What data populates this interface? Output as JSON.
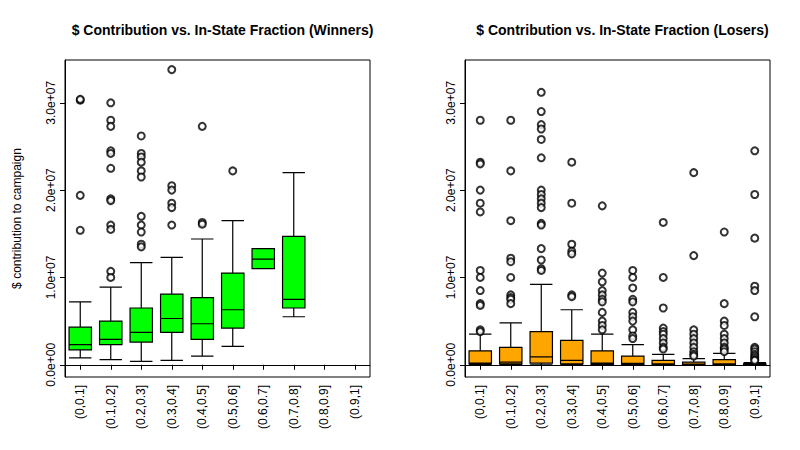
{
  "chart_data": [
    {
      "type": "boxplot",
      "title": "$ Contribution vs. In-State Fraction (Winners)",
      "ylabel": "$ contribution to campaign",
      "color": "#00ff00",
      "categories": [
        "(0,0.1]",
        "(0.1,0.2]",
        "(0.2,0.3]",
        "(0.3,0.4]",
        "(0.4,0.5]",
        "(0.5,0.6]",
        "(0.6,0.7]",
        "(0.7,0.8]",
        "(0.8,0.9]",
        "(0.9,1]"
      ],
      "boxes": [
        [
          800000.0,
          1700000.0,
          2300000.0,
          4300000.0,
          7200000.0
        ],
        [
          600000.0,
          2300000.0,
          2900000.0,
          5000000.0,
          8900000.0
        ],
        [
          400000.0,
          2600000.0,
          3700000.0,
          6500000.0,
          11700000.0
        ],
        [
          500000.0,
          3700000.0,
          5300000.0,
          8100000.0,
          12300000.0
        ],
        [
          1000000.0,
          2900000.0,
          4700000.0,
          7700000.0,
          14400000.0
        ],
        [
          2100000.0,
          4200000.0,
          6300000.0,
          10500000.0,
          16500000.0
        ],
        [
          11000000.0,
          11000000.0,
          12100000.0,
          13300000.0,
          13300000.0
        ],
        [
          5500000.0,
          6500000.0,
          7500000.0,
          14700000.0,
          22000000.0
        ],
        null,
        null
      ],
      "outliers": [
        [
          30300000.0,
          30400000.0,
          19400000.0,
          15400000.0
        ],
        [
          30000000.0,
          28000000.0,
          27300000.0,
          24500000.0,
          24200000.0,
          22500000.0,
          19000000.0,
          18800000.0,
          16000000.0,
          15500000.0,
          10700000.0,
          10000000.0
        ],
        [
          26200000.0,
          24200000.0,
          23800000.0,
          23200000.0,
          22200000.0,
          21500000.0,
          17000000.0,
          16000000.0,
          15200000.0,
          13800000.0,
          13500000.0
        ],
        [
          33800000.0,
          20500000.0,
          20000000.0,
          18500000.0,
          18000000.0,
          16000000.0
        ],
        [
          27300000.0,
          16300000.0,
          16100000.0
        ],
        [
          22200000.0
        ],
        [],
        [],
        [],
        []
      ],
      "ylim": [
        -1400000.0,
        34900000.0
      ],
      "yticks": [
        {
          "value": 0,
          "label": "0.0e+00"
        },
        {
          "value": 10000000,
          "label": "1.0e+07"
        },
        {
          "value": 20000000,
          "label": "2.0e+07"
        },
        {
          "value": 30000000,
          "label": "3.0e+07"
        }
      ]
    },
    {
      "type": "boxplot",
      "title": "$ Contribution vs. In-State Fraction (Losers)",
      "color": "#ffa500",
      "categories": [
        "(0,0.1]",
        "(0.1,0.2]",
        "(0.2,0.3]",
        "(0.3,0.4]",
        "(0.4,0.5]",
        "(0.5,0.6]",
        "(0.6,0.7]",
        "(0.7,0.8]",
        "(0.8,0.9]",
        "(0.9,1]"
      ],
      "boxes": [
        [
          0,
          100000.0,
          200000.0,
          1600000.0,
          3500000.0
        ],
        [
          0,
          100000.0,
          300000.0,
          2000000.0,
          4800000.0
        ],
        [
          0,
          200000.0,
          900000.0,
          3800000.0,
          9200000.0
        ],
        [
          0,
          100000.0,
          500000.0,
          2800000.0,
          6300000.0
        ],
        [
          0,
          50000.0,
          200000.0,
          1600000.0,
          3500000.0
        ],
        [
          0,
          30000.0,
          150000.0,
          1000000.0,
          2300000.0
        ],
        [
          0,
          30000.0,
          100000.0,
          500000.0,
          1200000.0
        ],
        [
          0,
          20000.0,
          80000.0,
          300000.0,
          700000.0
        ],
        [
          0,
          30000.0,
          100000.0,
          600000.0,
          1300000.0
        ],
        [
          0,
          10000.0,
          30000.0,
          100000.0,
          250000.0
        ]
      ],
      "outliers": [
        [
          28000000.0,
          23200000.0,
          23000000.0,
          20000000.0,
          18500000.0,
          17500000.0,
          10800000.0,
          10000000.0,
          8500000.0,
          7000000.0,
          6800000.0,
          4000000.0,
          3800000.0
        ],
        [
          28000000.0,
          22200000.0,
          16500000.0,
          12200000.0,
          11800000.0,
          10000000.0,
          8000000.0,
          7700000.0,
          7500000.0,
          7000000.0
        ],
        [
          31200000.0,
          29000000.0,
          27500000.0,
          27000000.0,
          25800000.0,
          23700000.0,
          20000000.0,
          19500000.0,
          19000000.0,
          18500000.0,
          18000000.0,
          16200000.0,
          16000000.0,
          13300000.0,
          12000000.0,
          11000000.0,
          10800000.0
        ],
        [
          23200000.0,
          18500000.0,
          13800000.0,
          13000000.0,
          12700000.0,
          8000000.0,
          7800000.0
        ],
        [
          18200000.0,
          10500000.0,
          9500000.0,
          8500000.0,
          8000000.0,
          7500000.0,
          7200000.0,
          6000000.0,
          5000000.0,
          4500000.0,
          4000000.0
        ],
        [
          10800000.0,
          10000000.0,
          8800000.0,
          7500000.0,
          7200000.0,
          6000000.0,
          5500000.0,
          5000000.0,
          4000000.0,
          3300000.0,
          3000000.0
        ],
        [
          16300000.0,
          10000000.0,
          6500000.0,
          4200000.0,
          3800000.0,
          3500000.0,
          3000000.0,
          2500000.0,
          2000000.0,
          1800000.0
        ],
        [
          22000000.0,
          12500000.0,
          4000000.0,
          3500000.0,
          3000000.0,
          2500000.0,
          2000000.0,
          1500000.0,
          1200000.0,
          1000000.0
        ],
        [
          15200000.0,
          7000000.0,
          5000000.0,
          4500000.0,
          3500000.0,
          3000000.0,
          2500000.0,
          2000000.0,
          1800000.0,
          1500000.0
        ],
        [
          24500000.0,
          19500000.0,
          14500000.0,
          9000000.0,
          8500000.0,
          5500000.0,
          2000000.0,
          1800000.0,
          1500000.0,
          1200000.0,
          1000000.0,
          800000.0,
          600000.0,
          500000.0
        ]
      ],
      "ylim": [
        -1400000.0,
        34900000.0
      ],
      "yticks": [
        {
          "value": 0,
          "label": "0.0e+00"
        },
        {
          "value": 10000000,
          "label": "1.0e+07"
        },
        {
          "value": 20000000,
          "label": "2.0e+07"
        },
        {
          "value": 30000000,
          "label": "3.0e+07"
        }
      ]
    }
  ]
}
